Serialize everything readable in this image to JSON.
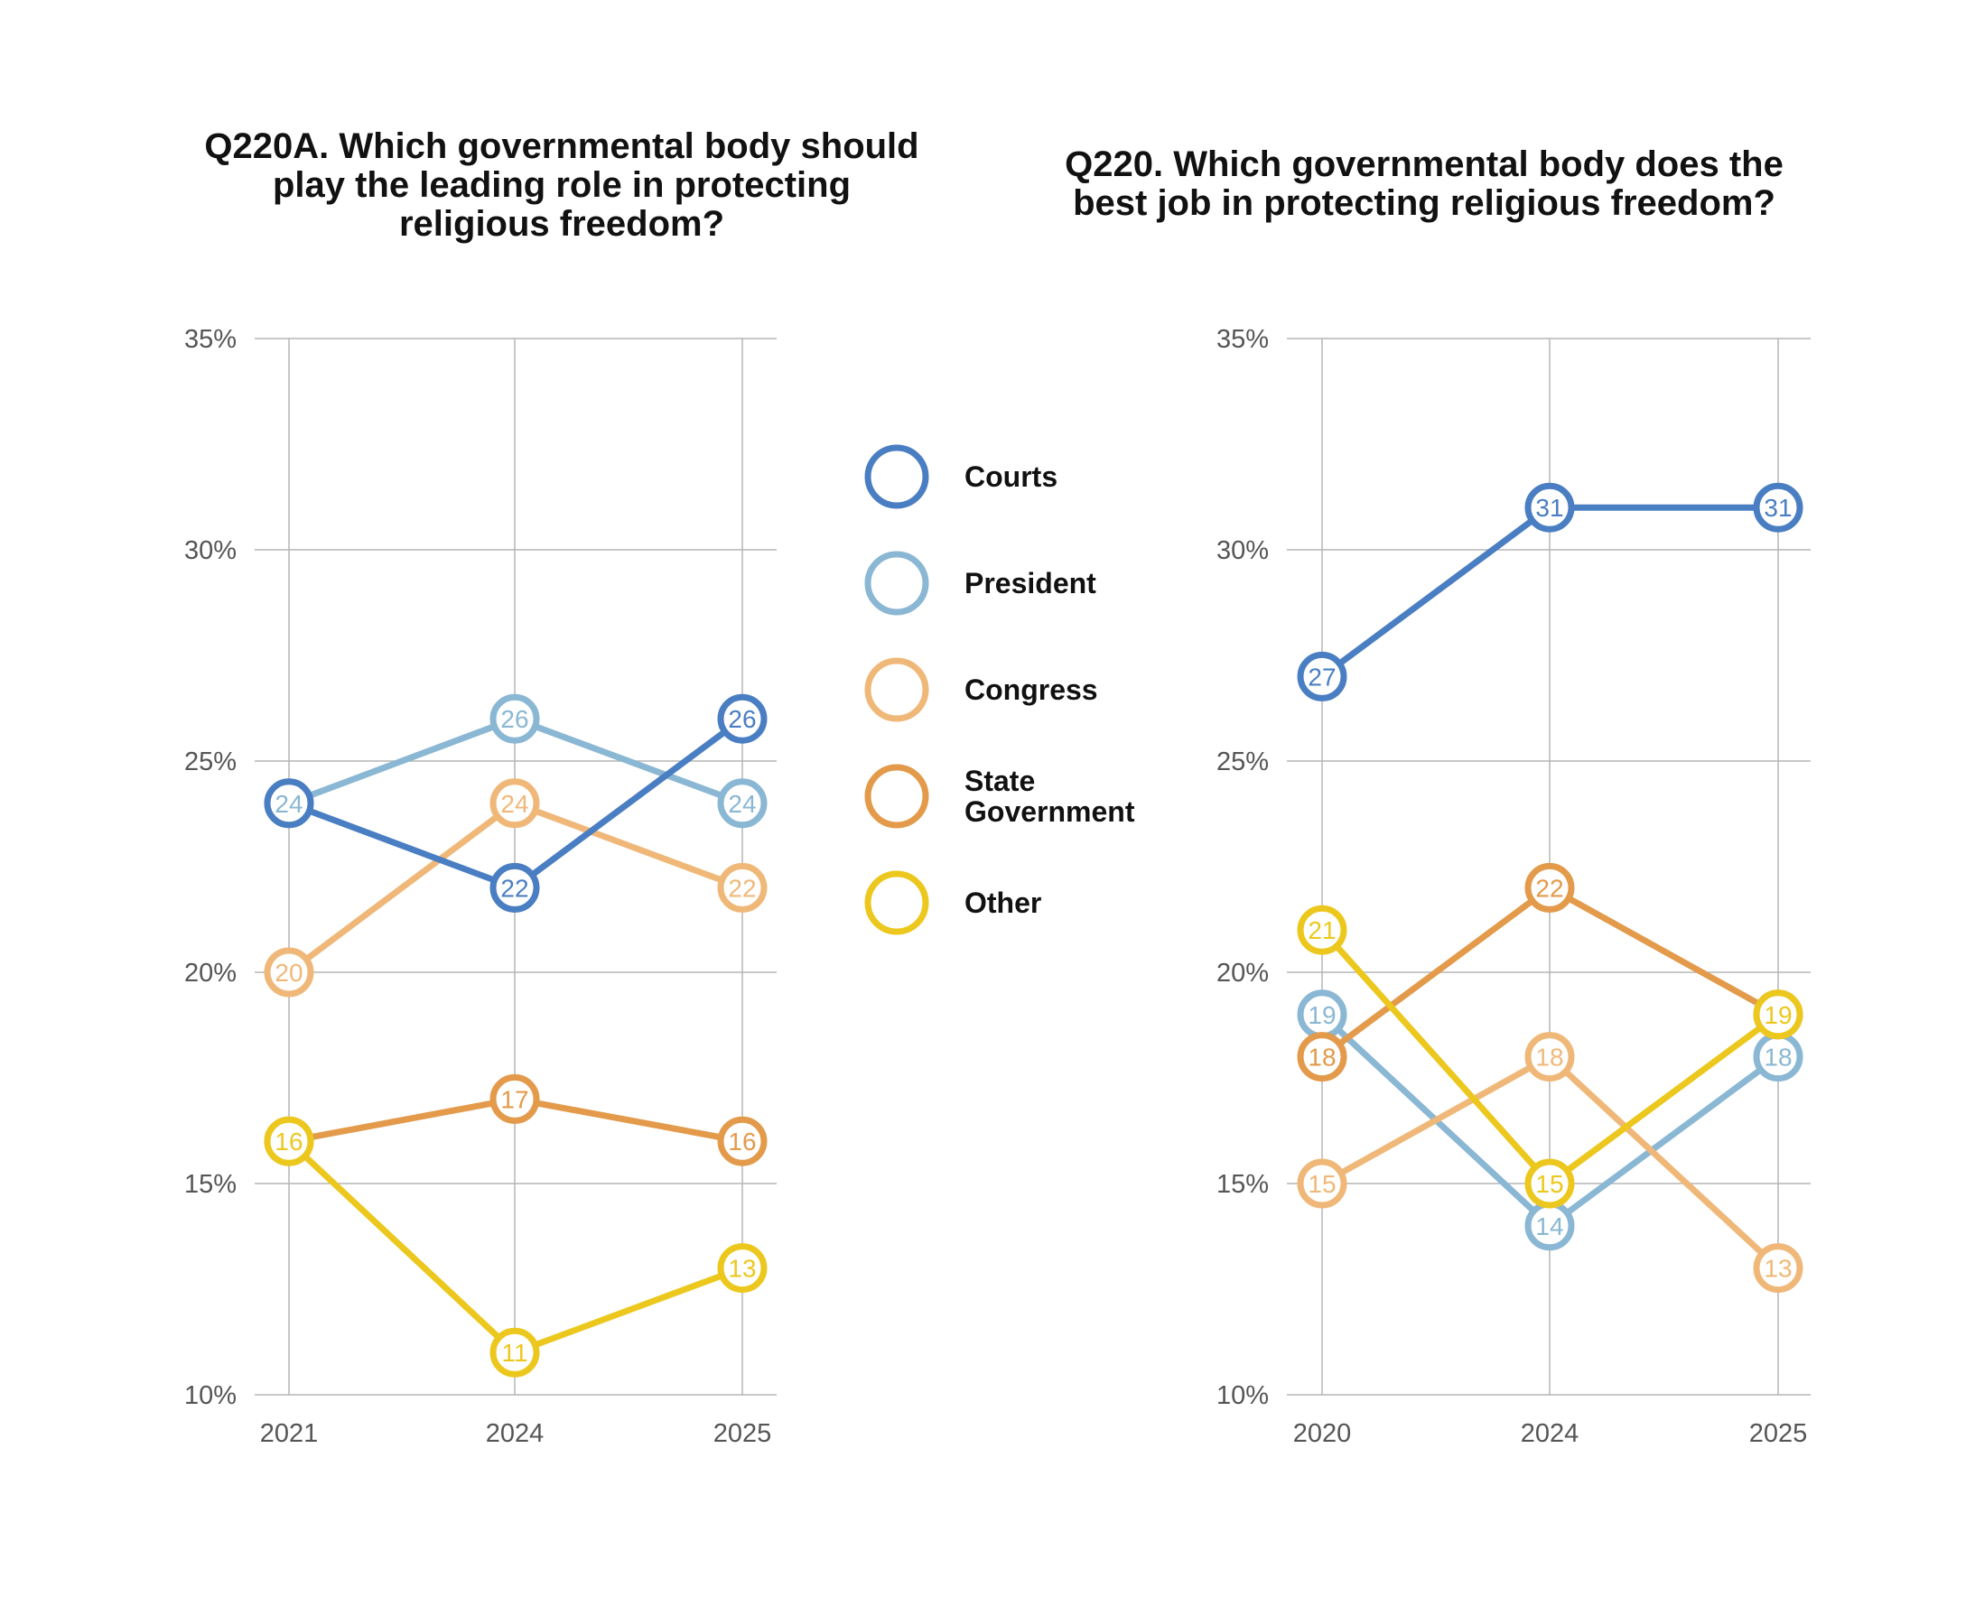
{
  "legend": {
    "items": [
      {
        "key": "courts",
        "label_lines": [
          "Courts"
        ]
      },
      {
        "key": "president",
        "label_lines": [
          "President"
        ]
      },
      {
        "key": "congress",
        "label_lines": [
          "Congress"
        ]
      },
      {
        "key": "state",
        "label_lines": [
          "State",
          "Government"
        ]
      },
      {
        "key": "other",
        "label_lines": [
          "Other"
        ]
      }
    ]
  },
  "colors": {
    "courts": "#4a7ec2",
    "president": "#8ab7d3",
    "congress": "#f0b878",
    "state": "#e39a4a",
    "other": "#ecc81e",
    "grid": "#b5b5b5",
    "text": "#111111"
  },
  "chart_data": [
    {
      "type": "line",
      "title_lines": [
        "Q220A. Which governmental body should",
        "play the leading role in protecting",
        "religious freedom?"
      ],
      "categories": [
        "2021",
        "2024",
        "2025"
      ],
      "ylim": [
        10,
        35
      ],
      "yticks": [
        "10%",
        "15%",
        "20%",
        "25%",
        "30%",
        "35%"
      ],
      "series": [
        {
          "key": "state",
          "name": "State Government",
          "values": [
            16,
            17,
            16
          ]
        },
        {
          "key": "other",
          "name": "Other",
          "values": [
            16,
            11,
            13
          ]
        },
        {
          "key": "congress",
          "name": "Congress",
          "values": [
            20,
            24,
            22
          ]
        },
        {
          "key": "president",
          "name": "President",
          "values": [
            24,
            26,
            24
          ]
        },
        {
          "key": "courts",
          "name": "Courts",
          "values": [
            24,
            22,
            26
          ]
        }
      ],
      "labels": [
        {
          "key": "courts",
          "values": [
            "",
            "22",
            "26"
          ]
        },
        {
          "key": "president",
          "values": [
            "24",
            "26",
            "24"
          ]
        },
        {
          "key": "congress",
          "values": [
            "20",
            "24",
            "22"
          ]
        },
        {
          "key": "state",
          "values": [
            "",
            "17",
            "16"
          ]
        },
        {
          "key": "other",
          "values": [
            "16",
            "11",
            "13"
          ]
        }
      ]
    },
    {
      "type": "line",
      "title_lines": [
        "Q220. Which governmental body does the",
        "best job in protecting religious freedom?"
      ],
      "categories": [
        "2020",
        "2024",
        "2025"
      ],
      "ylim": [
        10,
        35
      ],
      "yticks": [
        "10%",
        "15%",
        "20%",
        "25%",
        "30%",
        "35%"
      ],
      "series": [
        {
          "key": "president",
          "name": "President",
          "values": [
            19,
            14,
            18
          ]
        },
        {
          "key": "congress",
          "name": "Congress",
          "values": [
            15,
            18,
            13
          ]
        },
        {
          "key": "state",
          "name": "State Government",
          "values": [
            18,
            22,
            19
          ]
        },
        {
          "key": "other",
          "name": "Other",
          "values": [
            21,
            15,
            19
          ]
        },
        {
          "key": "courts",
          "name": "Courts",
          "values": [
            27,
            31,
            31
          ]
        }
      ],
      "labels": [
        {
          "key": "courts",
          "values": [
            "27",
            "31",
            "31"
          ]
        },
        {
          "key": "president",
          "values": [
            "19",
            "14",
            "18"
          ]
        },
        {
          "key": "congress",
          "values": [
            "15",
            "18",
            "13"
          ]
        },
        {
          "key": "state",
          "values": [
            "18",
            "22",
            ""
          ]
        },
        {
          "key": "other",
          "values": [
            "21",
            "15",
            "19"
          ]
        }
      ]
    }
  ]
}
